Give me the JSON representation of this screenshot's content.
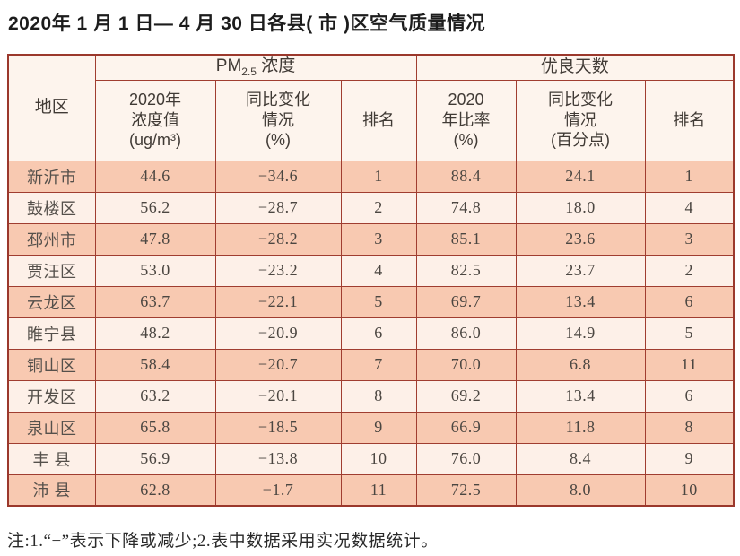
{
  "title": "2020年 1 月 1 日— 4 月 30 日各县( 市 )区空气质量情况",
  "note": "注:1.“−”表示下降或减少;2.表中数据采用实况数据统计。",
  "table": {
    "header": {
      "region": "地区",
      "pm25_group": {
        "prefix": "PM",
        "sub": "2.5",
        "suffix": " 浓度"
      },
      "good_days_group": "优良天数",
      "sub_columns": [
        "2020年\n浓度值\n(ug/m³)",
        "同比变化\n情况\n(%)",
        "排名",
        "2020\n年比率\n(%)",
        "同比变化\n情况\n(百分点)",
        "排名"
      ]
    },
    "rows": [
      {
        "region": "新沂市",
        "pm_value": "44.6",
        "pm_change": "−34.6",
        "pm_rank": "1",
        "good_rate": "88.4",
        "good_change": "24.1",
        "good_rank": "1"
      },
      {
        "region": "鼓楼区",
        "pm_value": "56.2",
        "pm_change": "−28.7",
        "pm_rank": "2",
        "good_rate": "74.8",
        "good_change": "18.0",
        "good_rank": "4"
      },
      {
        "region": "邳州市",
        "pm_value": "47.8",
        "pm_change": "−28.2",
        "pm_rank": "3",
        "good_rate": "85.1",
        "good_change": "23.6",
        "good_rank": "3"
      },
      {
        "region": "贾汪区",
        "pm_value": "53.0",
        "pm_change": "−23.2",
        "pm_rank": "4",
        "good_rate": "82.5",
        "good_change": "23.7",
        "good_rank": "2"
      },
      {
        "region": "云龙区",
        "pm_value": "63.7",
        "pm_change": "−22.1",
        "pm_rank": "5",
        "good_rate": "69.7",
        "good_change": "13.4",
        "good_rank": "6"
      },
      {
        "region": "睢宁县",
        "pm_value": "48.2",
        "pm_change": "−20.9",
        "pm_rank": "6",
        "good_rate": "86.0",
        "good_change": "14.9",
        "good_rank": "5"
      },
      {
        "region": "铜山区",
        "pm_value": "58.4",
        "pm_change": "−20.7",
        "pm_rank": "7",
        "good_rate": "70.0",
        "good_change": "6.8",
        "good_rank": "11"
      },
      {
        "region": "开发区",
        "pm_value": "63.2",
        "pm_change": "−20.1",
        "pm_rank": "8",
        "good_rate": "69.2",
        "good_change": "13.4",
        "good_rank": "6"
      },
      {
        "region": "泉山区",
        "pm_value": "65.8",
        "pm_change": "−18.5",
        "pm_rank": "9",
        "good_rate": "66.9",
        "good_change": "11.8",
        "good_rank": "8"
      },
      {
        "region": "丰 县",
        "pm_value": "56.9",
        "pm_change": "−13.8",
        "pm_rank": "10",
        "good_rate": "76.0",
        "good_change": "8.4",
        "good_rank": "9"
      },
      {
        "region": "沛 县",
        "pm_value": "62.8",
        "pm_change": "−1.7",
        "pm_rank": "11",
        "good_rate": "72.5",
        "good_change": "8.0",
        "good_rank": "10"
      }
    ]
  },
  "colors": {
    "border": "#a03d30",
    "row_salmon": "#f8c9b1",
    "row_light": "#fdf0e8",
    "header_bg": "#fdf4ed"
  }
}
